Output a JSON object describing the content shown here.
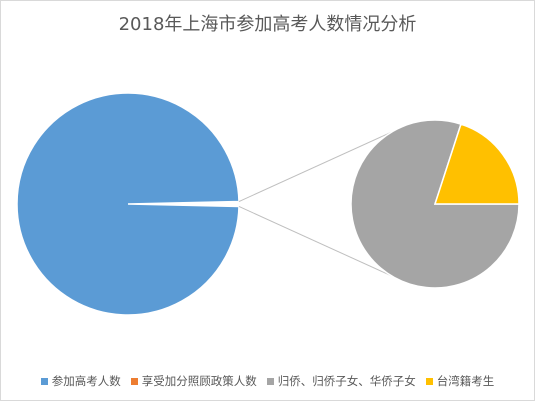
{
  "chart_data": {
    "type": "pie",
    "subtype": "pie-of-pie",
    "title": "2018年上海市参加高考人数情况分析",
    "legend_position": "bottom",
    "main_pie": {
      "slices": [
        {
          "category": "参加高考人数",
          "value": 99.3,
          "color": "#5b9bd5"
        },
        {
          "category": "享受加分照顾政策人数",
          "value": 0.7,
          "color": "#ed7d31",
          "exploded_to_secondary": true
        }
      ]
    },
    "secondary_pie": {
      "slices": [
        {
          "category": "归侨、归侨子女、华侨子女",
          "value": 80,
          "color": "#a5a5a5"
        },
        {
          "category": "台湾籍考生",
          "value": 20,
          "color": "#ffc000"
        }
      ]
    },
    "legend": [
      {
        "label": "参加高考人数",
        "color": "#5b9bd5"
      },
      {
        "label": "享受加分照顾政策人数",
        "color": "#ed7d31"
      },
      {
        "label": "归侨、归侨子女、华侨子女",
        "color": "#a5a5a5"
      },
      {
        "label": "台湾籍考生",
        "color": "#ffc000"
      }
    ]
  }
}
